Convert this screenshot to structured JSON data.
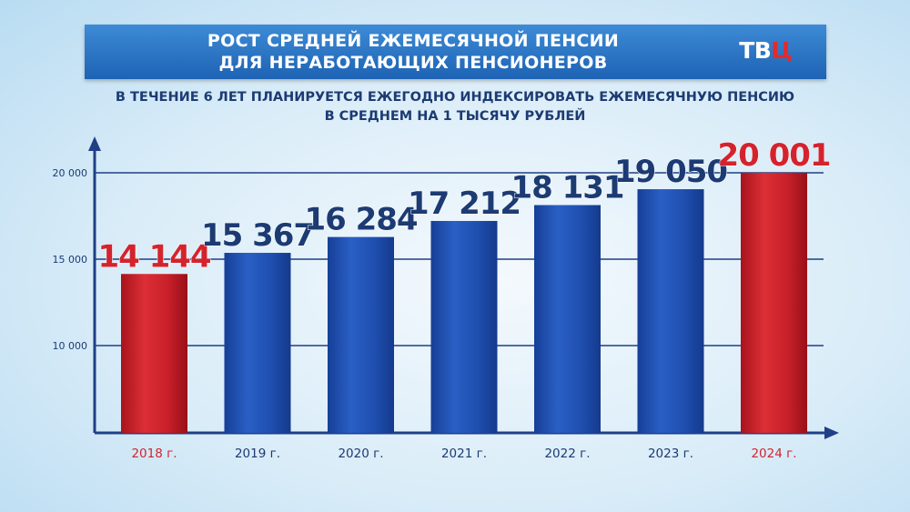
{
  "header": {
    "title_line1": "РОСТ СРЕДНЕЙ ЕЖЕМЕСЯЧНОЙ ПЕНСИИ",
    "title_line2": "ДЛЯ НЕРАБОТАЮЩИХ ПЕНСИОНЕРОВ",
    "logo_main": "ТВ",
    "logo_accent": "Ц",
    "logo_accent_color": "#e32b2b"
  },
  "subtitle": {
    "line1": "В ТЕЧЕНИЕ 6 ЛЕТ ПЛАНИРУЕТСЯ ЕЖЕГОДНО ИНДЕКСИРОВАТЬ ЕЖЕМЕСЯЧНУЮ ПЕНСИЮ",
    "line2": "В СРЕДНЕМ НА 1 ТЫСЯЧУ РУБЛЕЙ"
  },
  "chart_data": {
    "type": "bar",
    "categories": [
      "2018 г.",
      "2019 г.",
      "2020 г.",
      "2021 г.",
      "2022 г.",
      "2023 г.",
      "2024 г."
    ],
    "values": [
      14144,
      15367,
      16284,
      17212,
      18131,
      19050,
      20001
    ],
    "value_labels": [
      "14 144",
      "15 367",
      "16 284",
      "17 212",
      "18 131",
      "19 050",
      "20 001"
    ],
    "highlighted": [
      true,
      false,
      false,
      false,
      false,
      false,
      true
    ],
    "yticks": [
      10000,
      15000,
      20000
    ],
    "ytick_labels": [
      "10 000",
      "15 000",
      "20 000"
    ],
    "ylim": [
      5000,
      21500
    ],
    "grid": true,
    "colors": {
      "highlight_bar": "#c8202a",
      "normal_bar": "#1f4fb0",
      "highlight_text": "#d3242e",
      "normal_text": "#1c3b73",
      "axis": "#1f3f86"
    }
  }
}
